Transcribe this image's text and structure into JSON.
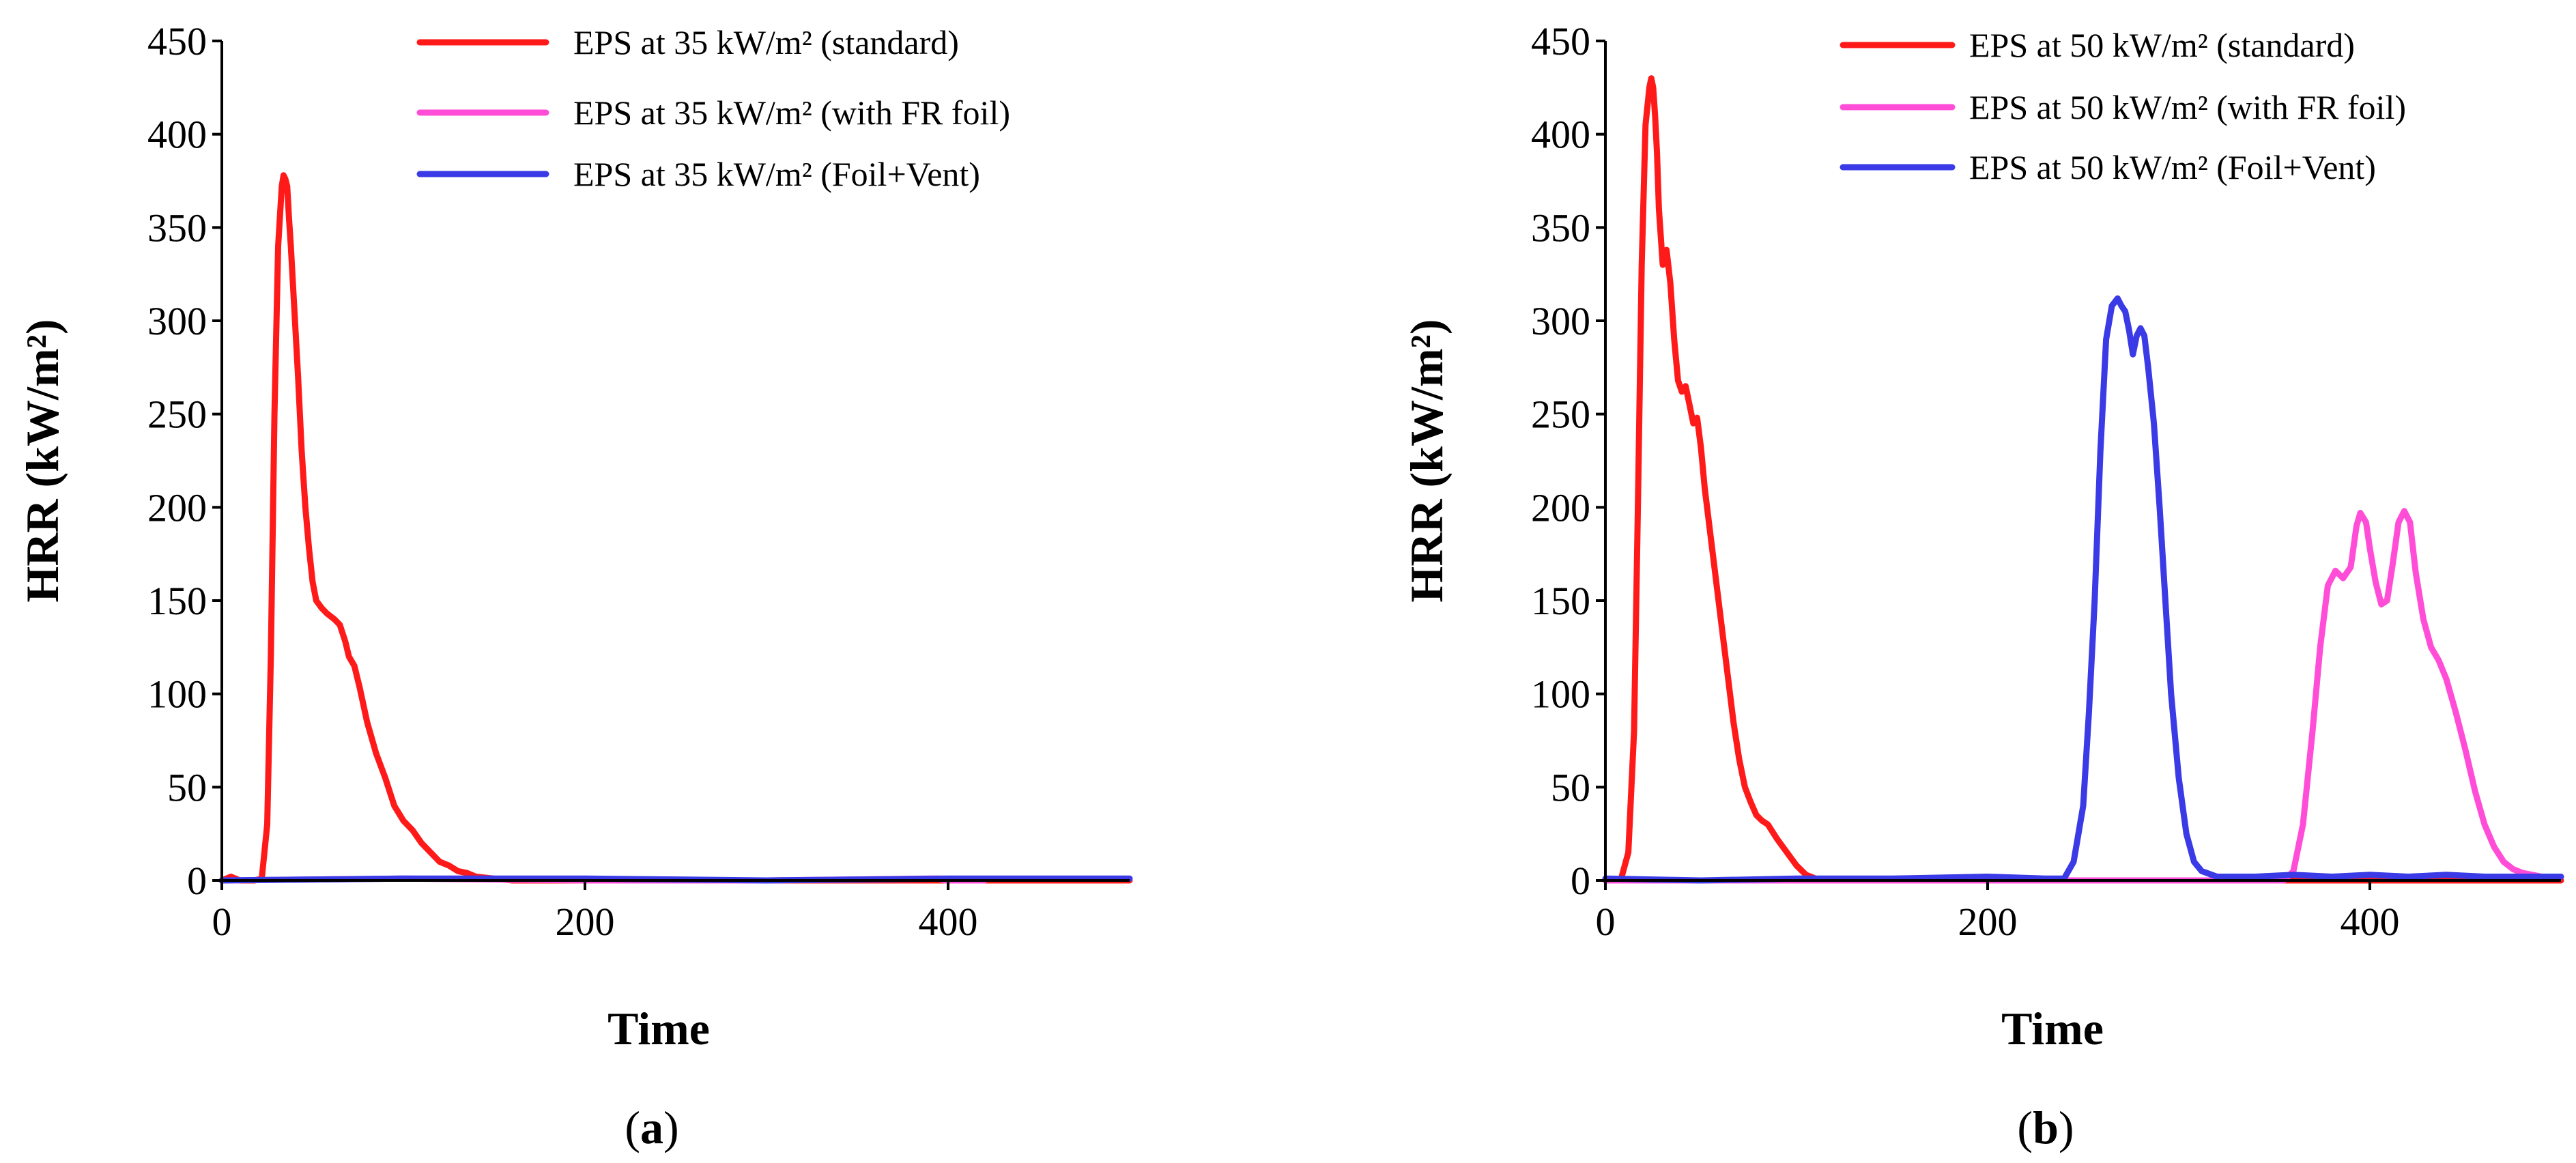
{
  "chart_data": [
    {
      "type": "line",
      "panel_label": "a",
      "xlabel": "Time",
      "ylabel": "HRR (kW/m²)",
      "xlim": [
        0,
        500
      ],
      "ylim": [
        0,
        450
      ],
      "xticks": [
        "0",
        "200",
        "400"
      ],
      "yticks": [
        "0",
        "50",
        "100",
        "150",
        "200",
        "250",
        "300",
        "350",
        "400",
        "450"
      ],
      "legend_position": "top-right",
      "series": [
        {
          "name": "EPS at 35 kW/m² (standard)",
          "color": "#ff1a1a",
          "points": [
            [
              0,
              0
            ],
            [
              5,
              2
            ],
            [
              10,
              0
            ],
            [
              18,
              0
            ],
            [
              22,
              1
            ],
            [
              25,
              30
            ],
            [
              27,
              120
            ],
            [
              29,
              250
            ],
            [
              31,
              340
            ],
            [
              33,
              372
            ],
            [
              34,
              378
            ],
            [
              35,
              376
            ],
            [
              36,
              372
            ],
            [
              37,
              355
            ],
            [
              38,
              340
            ],
            [
              40,
              305
            ],
            [
              42,
              270
            ],
            [
              44,
              230
            ],
            [
              46,
              200
            ],
            [
              48,
              178
            ],
            [
              50,
              160
            ],
            [
              52,
              150
            ],
            [
              55,
              146
            ],
            [
              58,
              143
            ],
            [
              62,
              140
            ],
            [
              65,
              137
            ],
            [
              68,
              128
            ],
            [
              70,
              120
            ],
            [
              73,
              115
            ],
            [
              76,
              103
            ],
            [
              80,
              85
            ],
            [
              85,
              68
            ],
            [
              90,
              55
            ],
            [
              95,
              40
            ],
            [
              100,
              32
            ],
            [
              105,
              27
            ],
            [
              110,
              20
            ],
            [
              115,
              15
            ],
            [
              120,
              10
            ],
            [
              125,
              8
            ],
            [
              130,
              5
            ],
            [
              135,
              4
            ],
            [
              140,
              2
            ],
            [
              150,
              1
            ],
            [
              160,
              0
            ],
            [
              500,
              0
            ]
          ]
        },
        {
          "name": "EPS at 35 kW/m² (with FR foil)",
          "color": "#ff4dd8",
          "points": [
            [
              0,
              0
            ],
            [
              100,
              1
            ],
            [
              200,
              0
            ],
            [
              300,
              0
            ],
            [
              390,
              1
            ],
            [
              395,
              1
            ],
            [
              398,
              0
            ],
            [
              420,
              0
            ]
          ]
        },
        {
          "name": "EPS at 35 kW/m² (Foil+Vent)",
          "color": "#3a3ae6",
          "points": [
            [
              0,
              0
            ],
            [
              100,
              1
            ],
            [
              200,
              1
            ],
            [
              300,
              0
            ],
            [
              400,
              1
            ],
            [
              500,
              1
            ]
          ]
        }
      ]
    },
    {
      "type": "line",
      "panel_label": "b",
      "xlabel": "Time",
      "ylabel": "HRR (kW/m²)",
      "xlim": [
        0,
        500
      ],
      "ylim": [
        0,
        450
      ],
      "xticks": [
        "0",
        "200",
        "400"
      ],
      "yticks": [
        "0",
        "50",
        "100",
        "150",
        "200",
        "250",
        "300",
        "350",
        "400",
        "450"
      ],
      "legend_position": "top-right",
      "series": [
        {
          "name": "EPS at 50 kW/m² (standard)",
          "color": "#ff1a1a",
          "points": [
            [
              0,
              0
            ],
            [
              8,
              0
            ],
            [
              12,
              15
            ],
            [
              15,
              80
            ],
            [
              17,
              200
            ],
            [
              19,
              330
            ],
            [
              21,
              405
            ],
            [
              23,
              425
            ],
            [
              24,
              430
            ],
            [
              25,
              425
            ],
            [
              26,
              410
            ],
            [
              27,
              390
            ],
            [
              28,
              360
            ],
            [
              30,
              330
            ],
            [
              32,
              338
            ],
            [
              34,
              320
            ],
            [
              36,
              290
            ],
            [
              38,
              268
            ],
            [
              40,
              262
            ],
            [
              42,
              265
            ],
            [
              44,
              255
            ],
            [
              46,
              245
            ],
            [
              48,
              248
            ],
            [
              50,
              232
            ],
            [
              52,
              210
            ],
            [
              55,
              185
            ],
            [
              58,
              160
            ],
            [
              61,
              135
            ],
            [
              64,
              110
            ],
            [
              67,
              85
            ],
            [
              70,
              65
            ],
            [
              73,
              50
            ],
            [
              76,
              42
            ],
            [
              79,
              35
            ],
            [
              82,
              32
            ],
            [
              85,
              30
            ],
            [
              90,
              22
            ],
            [
              95,
              15
            ],
            [
              100,
              8
            ],
            [
              105,
              3
            ],
            [
              110,
              1
            ],
            [
              120,
              0
            ],
            [
              500,
              0
            ]
          ]
        },
        {
          "name": "EPS at 50 kW/m² (with FR foil)",
          "color": "#ff4dd8",
          "points": [
            [
              0,
              0
            ],
            [
              300,
              0
            ],
            [
              355,
              0
            ],
            [
              360,
              5
            ],
            [
              365,
              30
            ],
            [
              370,
              80
            ],
            [
              374,
              125
            ],
            [
              378,
              158
            ],
            [
              382,
              166
            ],
            [
              386,
              162
            ],
            [
              390,
              168
            ],
            [
              393,
              190
            ],
            [
              395,
              197
            ],
            [
              398,
              192
            ],
            [
              400,
              178
            ],
            [
              403,
              160
            ],
            [
              406,
              148
            ],
            [
              409,
              150
            ],
            [
              412,
              170
            ],
            [
              415,
              192
            ],
            [
              418,
              198
            ],
            [
              421,
              192
            ],
            [
              424,
              165
            ],
            [
              428,
              140
            ],
            [
              432,
              125
            ],
            [
              436,
              118
            ],
            [
              440,
              108
            ],
            [
              445,
              90
            ],
            [
              450,
              70
            ],
            [
              455,
              48
            ],
            [
              460,
              30
            ],
            [
              465,
              18
            ],
            [
              470,
              10
            ],
            [
              475,
              6
            ],
            [
              480,
              4
            ],
            [
              490,
              2
            ],
            [
              500,
              2
            ]
          ]
        },
        {
          "name": "EPS at 50 kW/m² (Foil+Vent)",
          "color": "#3a3ae6",
          "points": [
            [
              0,
              1
            ],
            [
              50,
              0
            ],
            [
              100,
              1
            ],
            [
              150,
              1
            ],
            [
              200,
              2
            ],
            [
              230,
              1
            ],
            [
              240,
              1
            ],
            [
              245,
              10
            ],
            [
              250,
              40
            ],
            [
              253,
              90
            ],
            [
              256,
              150
            ],
            [
              259,
              230
            ],
            [
              262,
              290
            ],
            [
              265,
              308
            ],
            [
              268,
              312
            ],
            [
              270,
              308
            ],
            [
              272,
              305
            ],
            [
              274,
              295
            ],
            [
              276,
              282
            ],
            [
              278,
              292
            ],
            [
              280,
              296
            ],
            [
              282,
              292
            ],
            [
              284,
              275
            ],
            [
              287,
              245
            ],
            [
              290,
              200
            ],
            [
              293,
              150
            ],
            [
              296,
              100
            ],
            [
              300,
              55
            ],
            [
              304,
              25
            ],
            [
              308,
              10
            ],
            [
              312,
              5
            ],
            [
              320,
              2
            ],
            [
              340,
              2
            ],
            [
              360,
              3
            ],
            [
              380,
              2
            ],
            [
              400,
              3
            ],
            [
              420,
              2
            ],
            [
              440,
              3
            ],
            [
              460,
              2
            ],
            [
              480,
              2
            ],
            [
              500,
              2
            ]
          ]
        }
      ]
    }
  ]
}
